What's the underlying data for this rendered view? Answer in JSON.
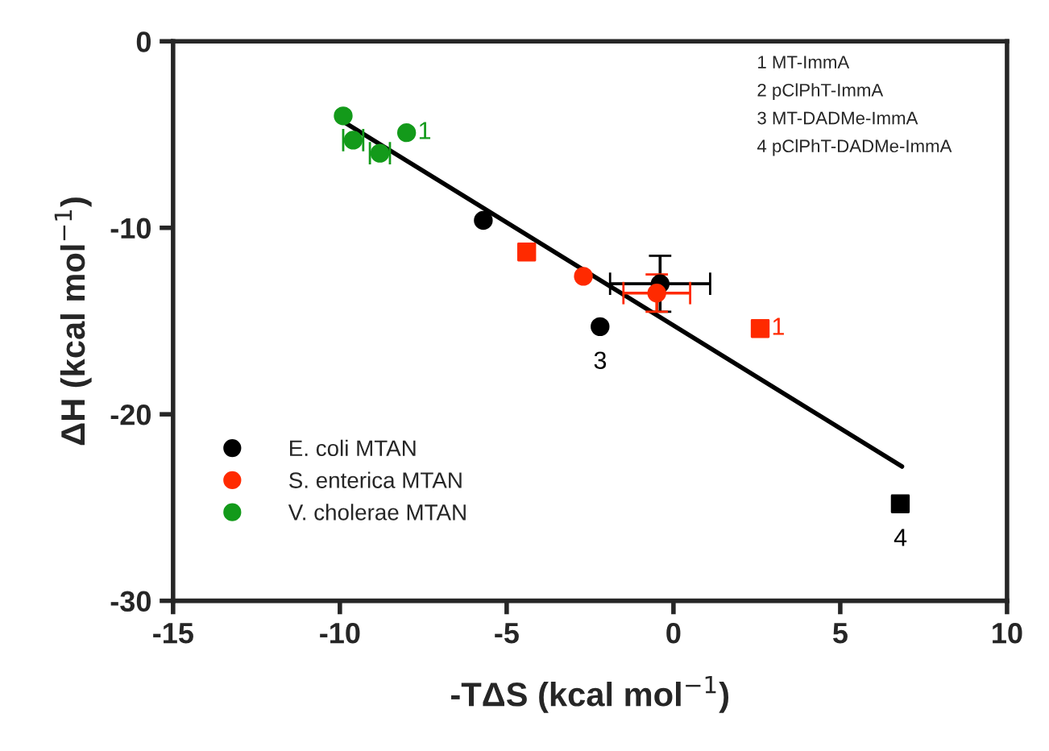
{
  "chart_data": {
    "type": "scatter",
    "xlabel": "-TΔS (kcal mol$^{−1}$)",
    "ylabel": "ΔH (kcal mol$^{−1}$)",
    "xlim": [
      -15,
      10
    ],
    "xticks": [
      -15,
      -10,
      -5,
      0,
      5,
      10
    ],
    "ylim": [
      -30,
      0
    ],
    "yticks": [
      -30,
      -20,
      -10,
      0
    ],
    "grid": false,
    "legend": "lower left",
    "marker": "circle",
    "series": [
      {
        "name": "E. coli MTAN",
        "color": "#000000",
        "x": [
          -5.7,
          -0.4,
          -2.2
        ],
        "values": [
          -9.6,
          -13.0,
          -15.3
        ],
        "errors": [
          null,
          1.5,
          null
        ],
        "xerrors": [
          null,
          1.5,
          null
        ]
      },
      {
        "color": "#000000",
        "marker": "square",
        "x": [
          6.8
        ],
        "values": [
          -24.8
        ]
      },
      {
        "name": "S. enterica MTAN",
        "color": "#ff2a00",
        "x": [
          -2.7,
          -0.5
        ],
        "values": [
          -12.6,
          -13.5
        ],
        "errors": [
          null,
          1.0
        ],
        "xerrors": [
          null,
          1.0
        ]
      },
      {
        "color": "#ff2a00",
        "marker": "square",
        "x": [
          -4.4,
          2.6
        ],
        "values": [
          -11.3,
          -15.4
        ]
      },
      {
        "name": "V. cholerae MTAN",
        "color": "#139a1a",
        "x": [
          -9.9,
          -9.6,
          -8.8,
          -8.0
        ],
        "values": [
          -4.0,
          -5.3,
          -6.0,
          -4.9
        ],
        "xerrors": [
          null,
          0.3,
          0.3,
          null
        ]
      },
      {
        "type": "line",
        "color": "#000000",
        "marker": "none",
        "line_style": "solid",
        "x": [
          -9.9,
          6.85
        ],
        "values": [
          -4.3,
          -22.8
        ]
      }
    ],
    "annotations": [
      {
        "text": "1",
        "x": -8.0,
        "y": -4.9
      },
      {
        "text": "1",
        "x": 2.6,
        "y": -15.4
      },
      {
        "text": "3",
        "x": -2.2,
        "y": -15.3
      },
      {
        "text": "4",
        "x": 6.8,
        "y": -24.8
      },
      "1 MT-ImmA",
      "2 pClPhT-ImmA",
      "3 MT-DADMe-ImmA",
      "4 pClPhT-DADMe-ImmA"
    ]
  }
}
